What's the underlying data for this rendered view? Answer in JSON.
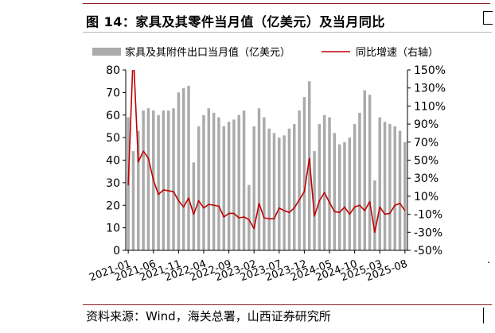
{
  "title": "图 14：家具及其零件当月值（亿美元）及当月同比",
  "source": "资料来源：Wind，海关总署，山西证券研究所",
  "chart_data": {
    "type": "bar+line",
    "x_tick_labels": [
      "2021-01",
      "2021-06",
      "2021-11",
      "2022-04",
      "2022-09",
      "2023-02",
      "2023-07",
      "2023-12",
      "2024-05",
      "2024-10",
      "2025-03",
      "2025-08"
    ],
    "left_axis": {
      "ylim": [
        0,
        80
      ],
      "ticks": [
        "0",
        "10",
        "20",
        "30",
        "40",
        "50",
        "60",
        "70",
        "80"
      ]
    },
    "right_axis": {
      "ylim": [
        -50,
        150
      ],
      "ticks": [
        "-50%",
        "-30%",
        "-10%",
        "10%",
        "30%",
        "50%",
        "70%",
        "90%",
        "110%",
        "130%",
        "150%"
      ]
    },
    "colors": {
      "bar": "#ababab",
      "line": "#c00000"
    },
    "series": [
      {
        "name": "家具及其附件出口当月值（亿美元）",
        "kind": "bar",
        "axis": "left",
        "x": [
          "2021-01",
          "2021-02",
          "2021-03",
          "2021-04",
          "2021-05",
          "2021-06",
          "2021-07",
          "2021-08",
          "2021-09",
          "2021-10",
          "2021-11",
          "2021-12",
          "2022-01",
          "2022-02",
          "2022-03",
          "2022-04",
          "2022-05",
          "2022-06",
          "2022-07",
          "2022-08",
          "2022-09",
          "2022-10",
          "2022-11",
          "2022-12",
          "2023-01",
          "2023-02",
          "2023-03",
          "2023-04",
          "2023-05",
          "2023-06",
          "2023-07",
          "2023-08",
          "2023-09",
          "2023-10",
          "2023-11",
          "2023-12",
          "2024-01",
          "2024-02",
          "2024-03",
          "2024-04",
          "2024-05",
          "2024-06",
          "2024-07",
          "2024-08",
          "2024-09",
          "2024-10",
          "2024-11",
          "2024-12",
          "2025-01",
          "2025-02",
          "2025-03",
          "2025-04",
          "2025-05",
          "2025-06",
          "2025-07",
          "2025-08"
        ],
        "values": [
          59,
          44,
          53,
          62,
          63,
          62,
          60,
          62,
          62,
          63,
          70,
          72,
          73,
          39,
          55,
          60,
          63,
          61,
          59,
          55,
          57,
          58,
          60,
          62,
          29,
          55,
          63,
          59,
          54,
          52,
          50,
          51,
          54,
          56,
          62,
          68,
          75,
          44,
          56,
          60,
          59,
          52,
          47,
          48,
          50,
          56,
          61,
          71,
          69,
          31,
          59,
          57,
          56,
          55,
          53,
          48
        ]
      },
      {
        "name": "同比增速（右轴）",
        "kind": "line",
        "axis": "right",
        "x": [
          "2021-01",
          "2021-02",
          "2021-03",
          "2021-04",
          "2021-05",
          "2021-06",
          "2021-07",
          "2021-08",
          "2021-09",
          "2021-10",
          "2021-11",
          "2021-12",
          "2022-01",
          "2022-02",
          "2022-03",
          "2022-04",
          "2022-05",
          "2022-06",
          "2022-07",
          "2022-08",
          "2022-09",
          "2022-10",
          "2022-11",
          "2022-12",
          "2023-01",
          "2023-02",
          "2023-03",
          "2023-04",
          "2023-05",
          "2023-06",
          "2023-07",
          "2023-08",
          "2023-09",
          "2023-10",
          "2023-11",
          "2023-12",
          "2024-01",
          "2024-02",
          "2024-03",
          "2024-04",
          "2024-05",
          "2024-06",
          "2024-07",
          "2024-08",
          "2024-09",
          "2024-10",
          "2024-11",
          "2024-12",
          "2025-01",
          "2025-02",
          "2025-03",
          "2025-04",
          "2025-05",
          "2025-06",
          "2025-07",
          "2025-08"
        ],
        "values": [
          22,
          170,
          48,
          60,
          52,
          28,
          12,
          17,
          16,
          15,
          5,
          -2,
          8,
          -10,
          5,
          -3,
          1,
          0,
          -1,
          -13,
          -9,
          -9,
          -14,
          -13,
          -16,
          -26,
          2,
          -14,
          -15,
          -15,
          -3,
          -6,
          -8,
          -3,
          6,
          15,
          52,
          -12,
          5,
          14,
          3,
          -7,
          -8,
          -2,
          -10,
          -2,
          0,
          -6,
          4,
          -30,
          -2,
          -10,
          -9,
          0,
          2,
          -6
        ]
      }
    ]
  }
}
